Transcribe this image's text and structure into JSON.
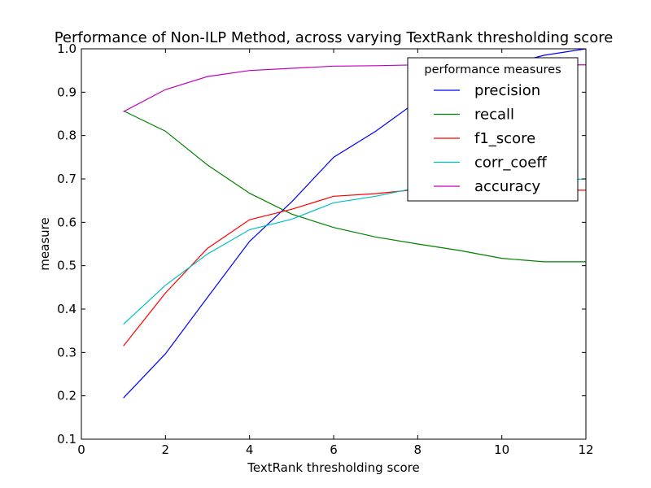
{
  "chart_data": {
    "type": "line",
    "title": "Performance of Non-ILP Method, across varying TextRank thresholding score",
    "xlabel": "TextRank thresholding score",
    "ylabel": "measure",
    "xlim": [
      0,
      12
    ],
    "ylim": [
      0.1,
      1.0
    ],
    "xticks": [
      "0",
      "2",
      "4",
      "6",
      "8",
      "10",
      "12"
    ],
    "yticks": [
      "0.1",
      "0.2",
      "0.3",
      "0.4",
      "0.5",
      "0.6",
      "0.7",
      "0.8",
      "0.9",
      "1.0"
    ],
    "grid": false,
    "legend": {
      "title": "performance measures",
      "placement": "top-right"
    },
    "x": [
      1,
      2,
      3,
      4,
      5,
      6,
      7,
      8,
      9,
      10,
      11,
      12
    ],
    "series": [
      {
        "name": "precision",
        "color": "#0000ff",
        "values": [
          0.195,
          0.297,
          0.427,
          0.556,
          0.647,
          0.75,
          0.81,
          0.88,
          0.92,
          0.96,
          0.985,
          1.0
        ]
      },
      {
        "name": "recall",
        "color": "#008000",
        "values": [
          0.857,
          0.81,
          0.732,
          0.667,
          0.619,
          0.588,
          0.566,
          0.55,
          0.535,
          0.517,
          0.509,
          0.509
        ]
      },
      {
        "name": "f1_score",
        "color": "#ff0000",
        "values": [
          0.315,
          0.437,
          0.54,
          0.606,
          0.63,
          0.66,
          0.666,
          0.676,
          0.68,
          0.685,
          0.674,
          0.674
        ]
      },
      {
        "name": "corr_coeff",
        "color": "#00bfbf",
        "values": [
          0.365,
          0.455,
          0.527,
          0.583,
          0.607,
          0.645,
          0.66,
          0.68,
          0.69,
          0.695,
          0.697,
          0.7
        ]
      },
      {
        "name": "accuracy",
        "color": "#bf00bf",
        "values": [
          0.855,
          0.906,
          0.936,
          0.95,
          0.955,
          0.96,
          0.961,
          0.963,
          0.963,
          0.963,
          0.963,
          0.963
        ]
      }
    ]
  }
}
